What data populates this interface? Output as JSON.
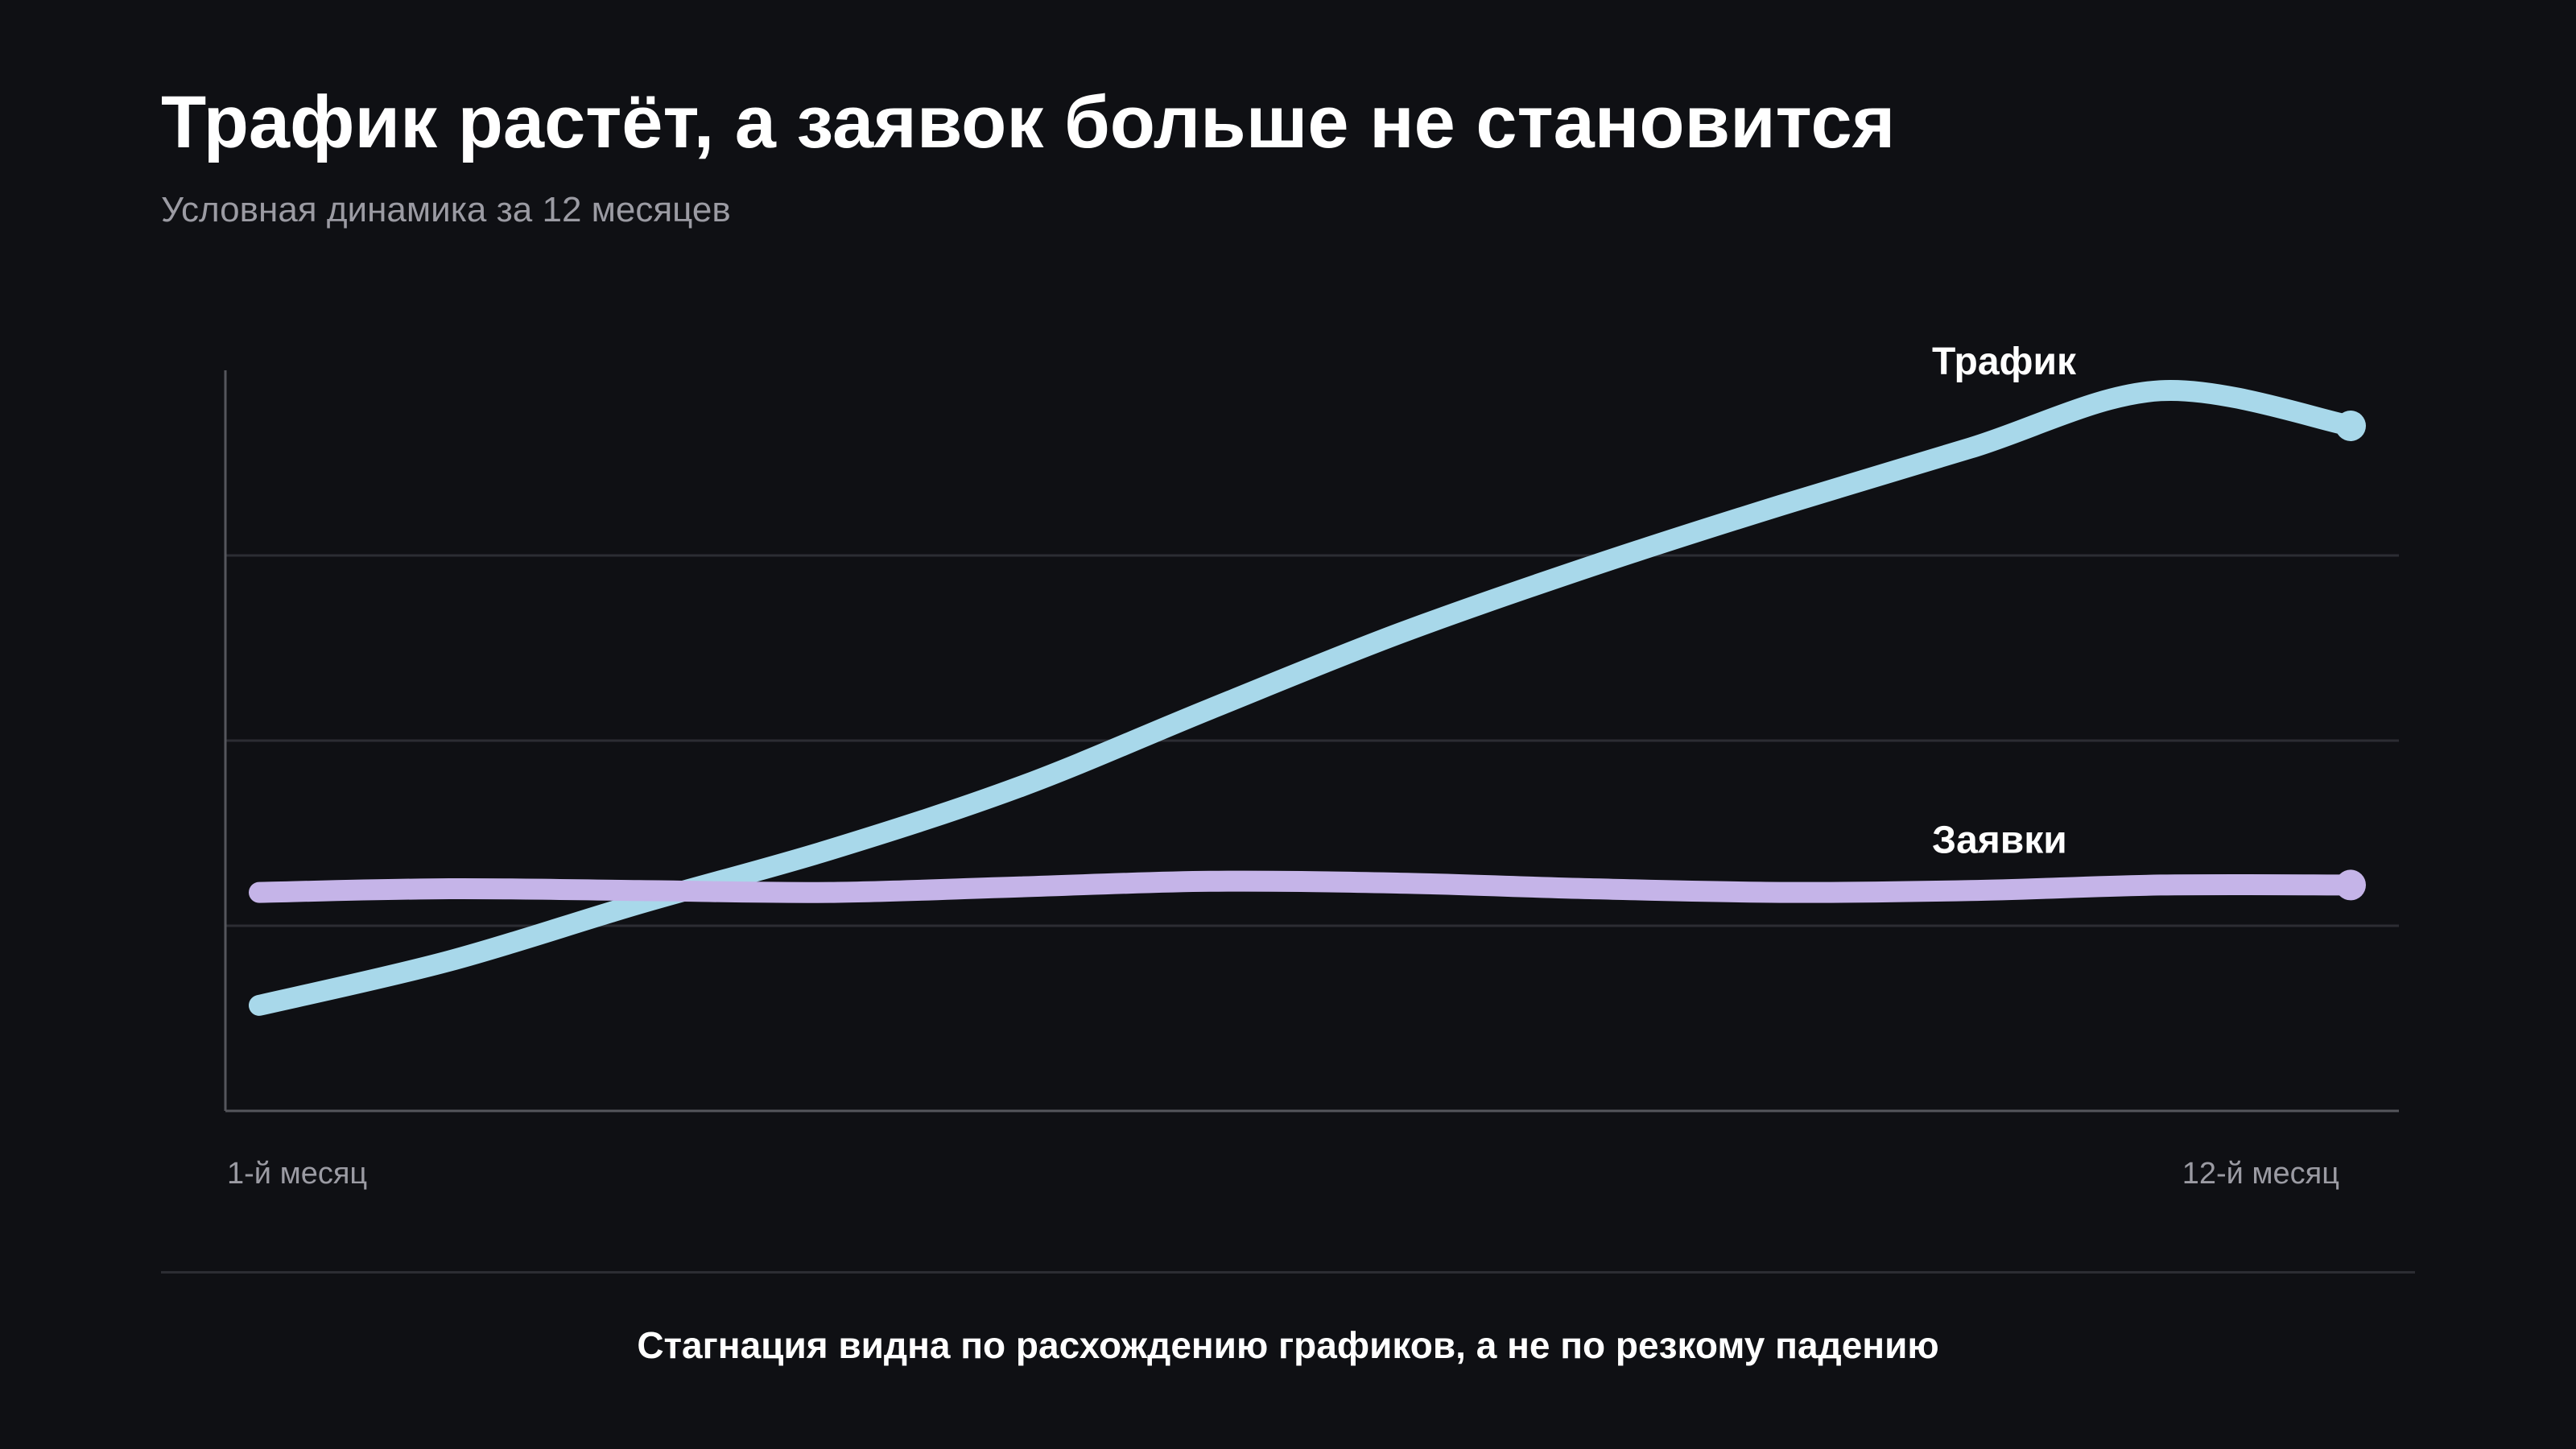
{
  "title": "Трафик растёт, а заявок больше не становится",
  "subtitle": "Условная динамика за 12 месяцев",
  "footnote": "Стагнация видна по расхождению графиков, а не по резкому падению",
  "colors": {
    "background": "#0f1014",
    "traffic": "#a8d8ea",
    "leads": "#c5b4e8",
    "grid": "#2c2d33",
    "axis": "#55565c",
    "tick_label": "#9b9ba3",
    "text": "#ffffff"
  },
  "chart_data": {
    "type": "line",
    "title": "Трафик растёт, а заявок больше не становится",
    "subtitle": "Условная динамика за 12 месяцев",
    "x": [
      1,
      2,
      3,
      4,
      5,
      6,
      7,
      8,
      9,
      10,
      11,
      12
    ],
    "x_tick_labels": [
      "1-й месяц",
      "12-й месяц"
    ],
    "ylim": [
      0,
      4
    ],
    "grid": true,
    "y_grid_values": [
      1,
      2,
      3
    ],
    "series": [
      {
        "name": "Трафик",
        "color": "#a8d8ea",
        "values": [
          0.57,
          0.81,
          1.12,
          1.41,
          1.75,
          2.17,
          2.58,
          2.94,
          3.27,
          3.58,
          3.89,
          3.7
        ]
      },
      {
        "name": "Заявки",
        "color": "#c5b4e8",
        "values": [
          1.18,
          1.2,
          1.19,
          1.18,
          1.21,
          1.24,
          1.23,
          1.2,
          1.18,
          1.19,
          1.22,
          1.22
        ]
      }
    ]
  }
}
